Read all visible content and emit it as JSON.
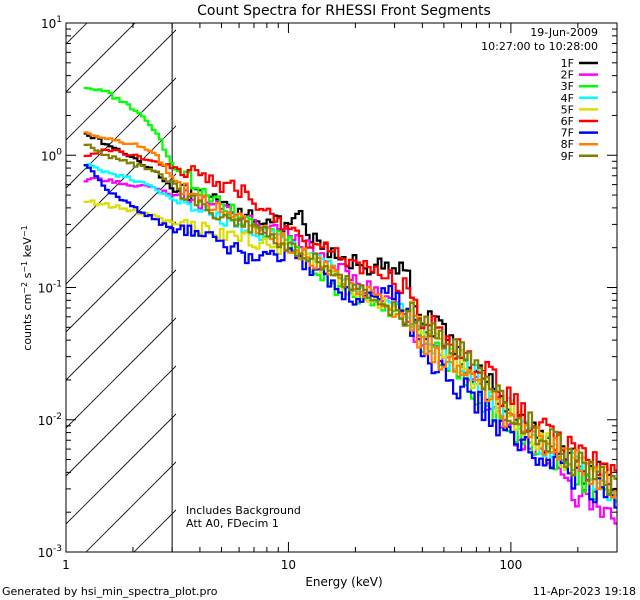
{
  "chart_data": {
    "type": "line",
    "title": "Count Spectra for RHESSI Front Segments",
    "xlabel": "Energy (keV)",
    "ylabel": "counts cm^-2 s^-1 keV^-1",
    "xscale": "log",
    "yscale": "log",
    "xlim": [
      1,
      300
    ],
    "ylim": [
      0.001,
      10
    ],
    "x_ticks": [
      {
        "value": 1,
        "label": "1"
      },
      {
        "value": 10,
        "label": "10"
      },
      {
        "value": 100,
        "label": "100"
      }
    ],
    "y_ticks": [
      {
        "value": 0.001,
        "base": "10",
        "exp": "-3"
      },
      {
        "value": 0.01,
        "base": "10",
        "exp": "-2"
      },
      {
        "value": 0.1,
        "base": "10",
        "exp": "-1"
      },
      {
        "value": 1,
        "base": "10",
        "exp": "0"
      },
      {
        "value": 10,
        "base": "10",
        "exp": "1"
      }
    ],
    "legend_position": "top-right",
    "legend_header": [
      "19-Jun-2009",
      "10:27:00 to 10:28:00"
    ],
    "shaded_region": {
      "x_from": 1,
      "x_to": 3,
      "style": "hatched"
    },
    "annotations": [
      "Includes Background",
      "Att A0, FDecim 1"
    ],
    "energy_bins": [
      1.2,
      1.5,
      2,
      2.5,
      3,
      4,
      5,
      6,
      7,
      8,
      9,
      10,
      11,
      12,
      14,
      16,
      18,
      20,
      22,
      25,
      28,
      32,
      36,
      40,
      45,
      50,
      60,
      70,
      80,
      90,
      100,
      120,
      150,
      180,
      220,
      260,
      290
    ],
    "series": [
      {
        "name": "1F",
        "color": "#000000",
        "values": [
          1.5,
          1.2,
          0.95,
          0.75,
          0.55,
          0.48,
          0.42,
          0.38,
          0.35,
          0.32,
          0.3,
          0.28,
          0.35,
          0.25,
          0.2,
          0.17,
          0.15,
          0.16,
          0.14,
          0.15,
          0.13,
          0.14,
          0.08,
          0.06,
          0.05,
          0.04,
          0.03,
          0.022,
          0.018,
          0.015,
          0.012,
          0.009,
          0.006,
          0.005,
          0.004,
          0.004,
          0.003
        ]
      },
      {
        "name": "2F",
        "color": "#ff00ff",
        "values": [
          0.65,
          0.65,
          0.6,
          0.55,
          0.5,
          0.45,
          0.4,
          0.35,
          0.32,
          0.28,
          0.26,
          0.25,
          0.22,
          0.2,
          0.17,
          0.15,
          0.13,
          0.12,
          0.1,
          0.09,
          0.08,
          0.07,
          0.05,
          0.04,
          0.035,
          0.03,
          0.025,
          0.018,
          0.014,
          0.011,
          0.008,
          0.006,
          0.005,
          0.003,
          0.0025,
          0.002,
          0.0015
        ]
      },
      {
        "name": "3F",
        "color": "#00ff00",
        "values": [
          3.3,
          3.0,
          2.2,
          1.5,
          0.8,
          0.55,
          0.42,
          0.35,
          0.3,
          0.27,
          0.25,
          0.22,
          0.18,
          0.15,
          0.12,
          0.1,
          0.09,
          0.085,
          0.08,
          0.075,
          0.07,
          0.065,
          0.05,
          0.04,
          0.033,
          0.028,
          0.022,
          0.016,
          0.013,
          0.011,
          0.009,
          0.007,
          0.005,
          0.004,
          0.003,
          0.0028,
          0.0025
        ]
      },
      {
        "name": "4F",
        "color": "#00ffff",
        "values": [
          0.85,
          0.75,
          0.65,
          0.55,
          0.45,
          0.38,
          0.33,
          0.3,
          0.27,
          0.25,
          0.23,
          0.21,
          0.19,
          0.17,
          0.15,
          0.13,
          0.11,
          0.1,
          0.09,
          0.08,
          0.07,
          0.065,
          0.05,
          0.04,
          0.035,
          0.03,
          0.025,
          0.02,
          0.016,
          0.013,
          0.011,
          0.008,
          0.006,
          0.005,
          0.004,
          0.003,
          0.0025
        ]
      },
      {
        "name": "5F",
        "color": "#dddd00",
        "values": [
          0.45,
          0.42,
          0.38,
          0.34,
          0.3,
          0.28,
          0.26,
          0.24,
          0.22,
          0.21,
          0.2,
          0.19,
          0.17,
          0.16,
          0.14,
          0.12,
          0.1,
          0.09,
          0.085,
          0.08,
          0.075,
          0.07,
          0.06,
          0.05,
          0.04,
          0.033,
          0.027,
          0.02,
          0.016,
          0.013,
          0.011,
          0.008,
          0.006,
          0.005,
          0.004,
          0.0035,
          0.003
        ]
      },
      {
        "name": "6F",
        "color": "#ff0000",
        "values": [
          1.0,
          1.1,
          1.0,
          0.9,
          0.8,
          0.7,
          0.6,
          0.55,
          0.45,
          0.35,
          0.3,
          0.28,
          0.25,
          0.22,
          0.2,
          0.18,
          0.16,
          0.15,
          0.14,
          0.13,
          0.12,
          0.1,
          0.08,
          0.06,
          0.05,
          0.04,
          0.03,
          0.025,
          0.02,
          0.016,
          0.013,
          0.01,
          0.008,
          0.006,
          0.005,
          0.004,
          0.0035
        ]
      },
      {
        "name": "7F",
        "color": "#0000ff",
        "values": [
          0.85,
          0.55,
          0.4,
          0.32,
          0.27,
          0.25,
          0.22,
          0.18,
          0.15,
          0.2,
          0.16,
          0.2,
          0.17,
          0.14,
          0.12,
          0.1,
          0.09,
          0.08,
          0.09,
          0.08,
          0.1,
          0.07,
          0.05,
          0.035,
          0.025,
          0.02,
          0.017,
          0.014,
          0.01,
          0.008,
          0.007,
          0.006,
          0.005,
          0.004,
          0.003,
          0.003,
          0.0025
        ]
      },
      {
        "name": "8F",
        "color": "#ff8000",
        "values": [
          1.5,
          1.35,
          1.2,
          1.0,
          0.65,
          0.45,
          0.38,
          0.32,
          0.28,
          0.25,
          0.23,
          0.21,
          0.19,
          0.17,
          0.15,
          0.13,
          0.11,
          0.1,
          0.09,
          0.08,
          0.07,
          0.065,
          0.05,
          0.04,
          0.033,
          0.028,
          0.022,
          0.017,
          0.014,
          0.012,
          0.01,
          0.008,
          0.006,
          0.005,
          0.004,
          0.0035,
          0.003
        ]
      },
      {
        "name": "9F",
        "color": "#808000",
        "values": [
          1.2,
          1.0,
          0.85,
          0.75,
          0.6,
          0.42,
          0.35,
          0.3,
          0.27,
          0.25,
          0.23,
          0.21,
          0.19,
          0.17,
          0.15,
          0.13,
          0.11,
          0.1,
          0.09,
          0.08,
          0.07,
          0.065,
          0.06,
          0.05,
          0.045,
          0.04,
          0.03,
          0.022,
          0.017,
          0.013,
          0.011,
          0.009,
          0.007,
          0.005,
          0.004,
          0.0035,
          0.003
        ]
      }
    ]
  },
  "footer": {
    "left": "Generated by hsi_min_spectra_plot.pro",
    "right": "11-Apr-2023 19:18"
  }
}
